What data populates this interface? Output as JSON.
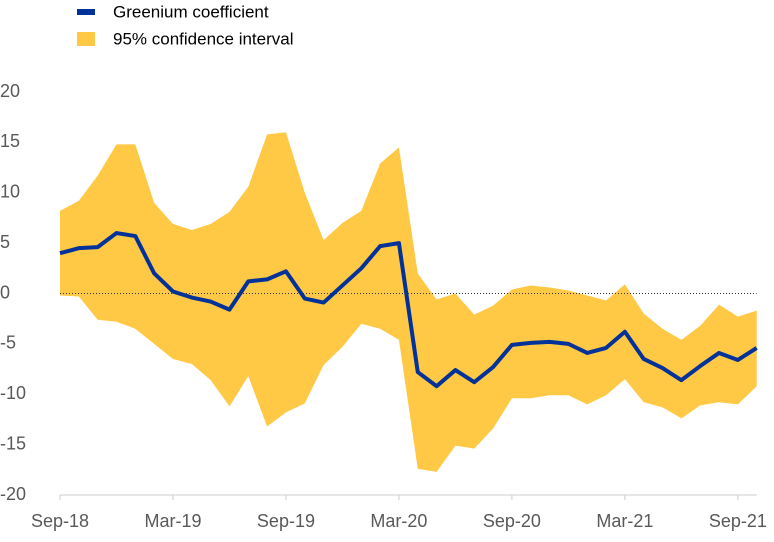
{
  "chart_data": {
    "type": "line",
    "categories": [
      "Sep-18",
      null,
      null,
      null,
      null,
      null,
      "Mar-19",
      null,
      null,
      null,
      null,
      null,
      "Sep-19",
      null,
      null,
      null,
      null,
      null,
      "Mar-20",
      null,
      null,
      null,
      null,
      null,
      "Sep-20",
      null,
      null,
      null,
      null,
      null,
      "Mar-21",
      null,
      null,
      null,
      null,
      null,
      "Sep-21",
      null
    ],
    "series": [
      {
        "name": "Greenium coefficient",
        "color": "#003299",
        "values": [
          4.0,
          4.5,
          4.6,
          6.0,
          5.7,
          2.0,
          0.2,
          -0.4,
          -0.8,
          -1.6,
          1.2,
          1.4,
          2.2,
          -0.5,
          -0.9,
          0.8,
          2.5,
          4.7,
          5.0,
          -7.8,
          -9.2,
          -7.6,
          -8.8,
          -7.3,
          -5.1,
          -4.9,
          -4.8,
          -5.0,
          -5.9,
          -5.4,
          -3.8,
          -6.5,
          -7.4,
          -8.6,
          -7.2,
          -5.9,
          -6.6,
          -5.4
        ]
      }
    ],
    "band": {
      "name": "95% confidence interval",
      "color": "#ffc845",
      "upper": [
        8.2,
        9.2,
        11.7,
        14.8,
        14.8,
        9.0,
        6.9,
        6.3,
        6.9,
        8.1,
        10.6,
        15.8,
        16.0,
        10.0,
        5.3,
        7.0,
        8.2,
        12.9,
        14.5,
        2.0,
        -0.6,
        0.0,
        -2.1,
        -1.2,
        0.4,
        0.8,
        0.6,
        0.3,
        -0.2,
        -0.7,
        0.9,
        -2.0,
        -3.5,
        -4.6,
        -3.2,
        -1.1,
        -2.3,
        -1.7
      ],
      "lower": [
        -0.2,
        -0.3,
        -2.6,
        -2.8,
        -3.5,
        -5.0,
        -6.5,
        -7.0,
        -8.6,
        -11.2,
        -8.2,
        -13.2,
        -11.8,
        -10.9,
        -7.1,
        -5.3,
        -3.0,
        -3.5,
        -4.6,
        -17.4,
        -17.7,
        -15.1,
        -15.4,
        -13.4,
        -10.4,
        -10.4,
        -10.1,
        -10.1,
        -11.0,
        -10.1,
        -8.5,
        -10.8,
        -11.3,
        -12.4,
        -11.1,
        -10.8,
        -11.0,
        -9.2
      ]
    },
    "ylim": [
      -20,
      20
    ],
    "yticks": [
      -20,
      -15,
      -10,
      -5,
      0,
      5,
      10,
      15,
      20
    ]
  }
}
